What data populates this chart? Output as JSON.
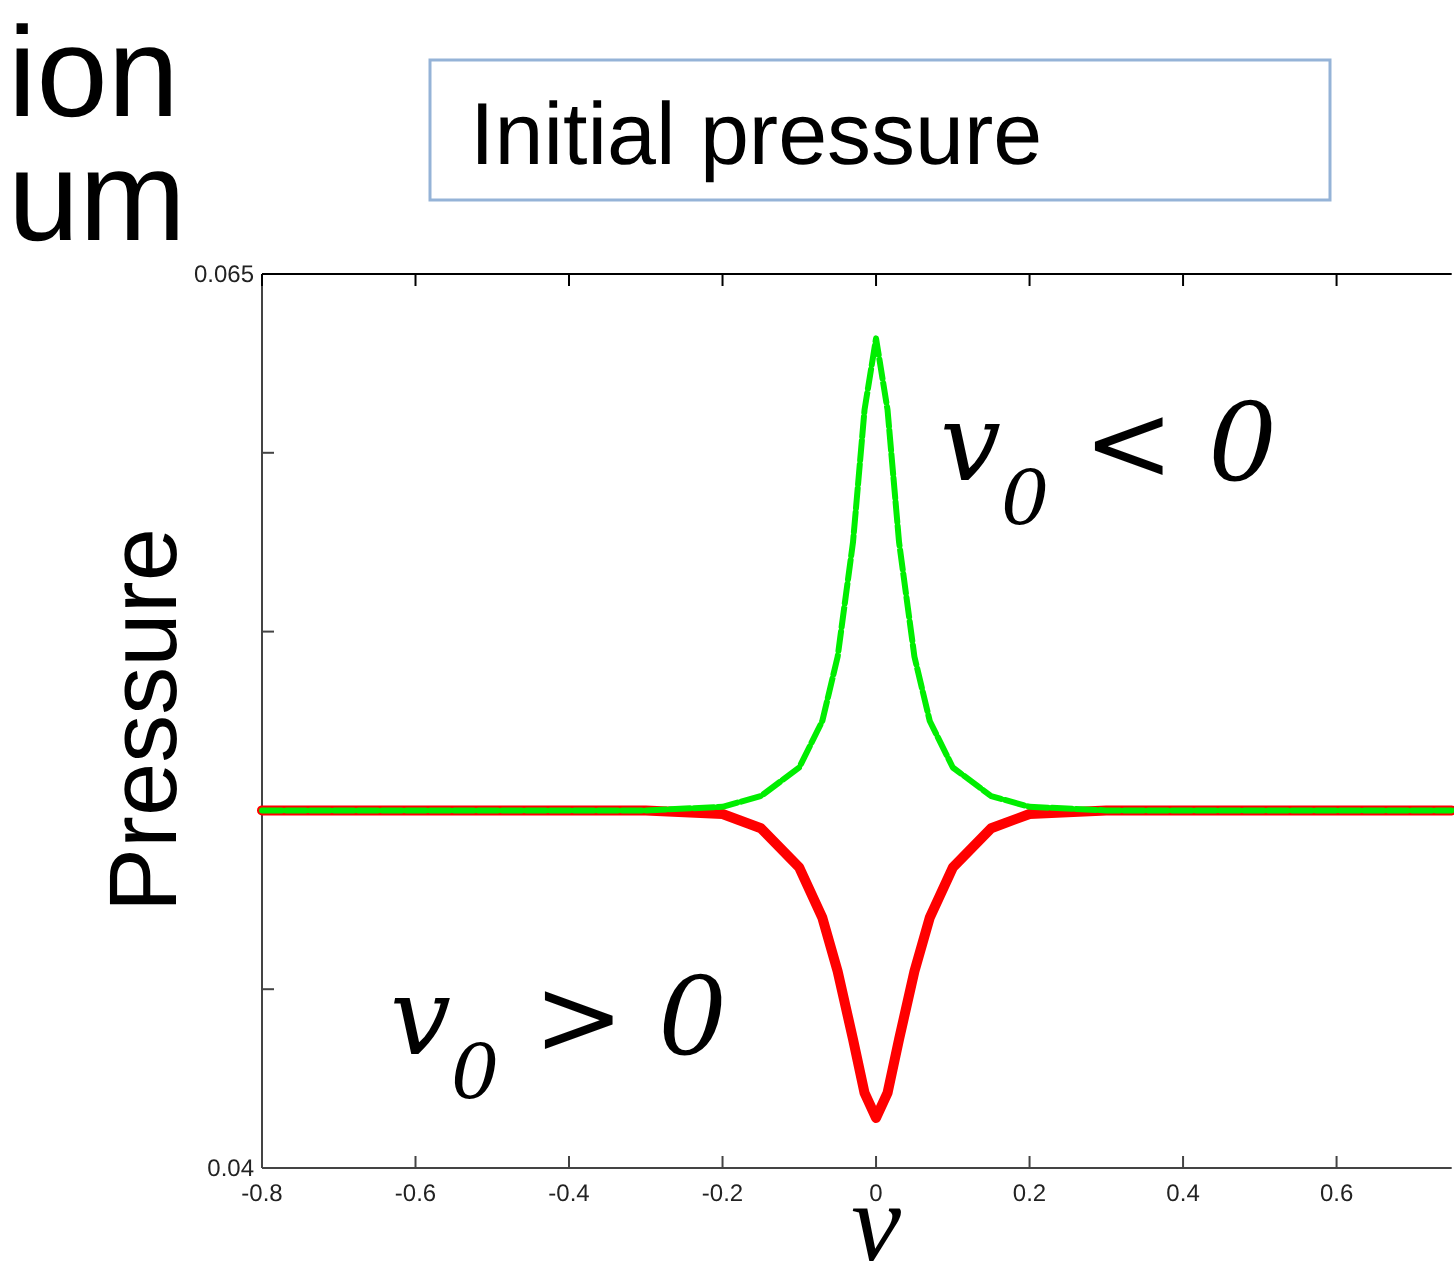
{
  "chart_data": {
    "type": "line",
    "xlabel": "v",
    "ylabel": "Pressure",
    "annotations": [
      "ion",
      "um",
      "Initial pressure"
    ],
    "x": [
      -0.8,
      -0.3,
      -0.2,
      -0.15,
      -0.1,
      -0.07,
      -0.05,
      -0.03,
      -0.015,
      0,
      0.015,
      0.03,
      0.05,
      0.07,
      0.1,
      0.15,
      0.2,
      0.3,
      0.75
    ],
    "series": [
      {
        "name": "v$_{0}$ > 0",
        "color": "#ff0000",
        "line_style": "solid",
        "values": [
          0.05,
          0.05,
          0.0499,
          0.0495,
          0.0484,
          0.047,
          0.0455,
          0.0436,
          0.0421,
          0.0414,
          0.0421,
          0.0436,
          0.0455,
          0.047,
          0.0484,
          0.0495,
          0.0499,
          0.05,
          0.05
        ]
      },
      {
        "name": "v$_{0}$ < 0",
        "color": "#00ee00",
        "line_style": "dashed",
        "values": [
          0.05,
          0.05,
          0.0501,
          0.0504,
          0.0512,
          0.0525,
          0.0543,
          0.0575,
          0.0612,
          0.0632,
          0.0612,
          0.0575,
          0.0543,
          0.0525,
          0.0512,
          0.0504,
          0.0501,
          0.05,
          0.05
        ]
      }
    ],
    "xlim": [
      -0.8,
      0.75
    ],
    "ylim": [
      0.04,
      0.065
    ],
    "xticks": [
      -0.8,
      -0.6,
      -0.4,
      -0.2,
      0,
      0.2,
      0.4,
      0.6
    ],
    "yticks": [
      0.04,
      {
        "value": 0.045,
        "label": null
      },
      {
        "value": 0.05,
        "label": null
      },
      {
        "value": 0.055,
        "label": null
      },
      {
        "value": 0.06,
        "label": null
      },
      0.065
    ],
    "grid": false
  }
}
